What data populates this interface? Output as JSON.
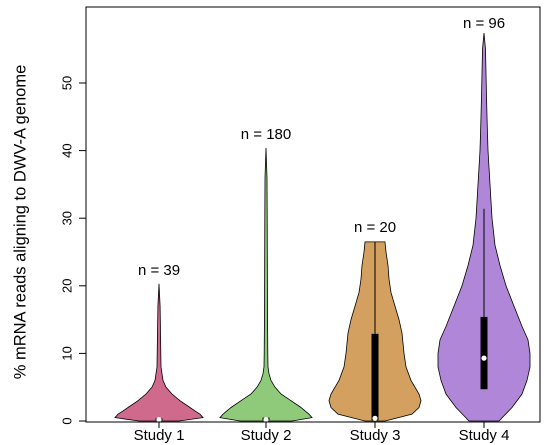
{
  "chart_data": {
    "type": "violin",
    "title": "",
    "ylabel": "% mRNA reads aligning to DWV-A genome",
    "xlabel": "",
    "ylim": [
      0,
      60
    ],
    "yticks": [
      0,
      10,
      20,
      30,
      40,
      50
    ],
    "grid": false,
    "legend": "none",
    "categories": [
      "Study 1",
      "Study 2",
      "Study 3",
      "Study 4"
    ],
    "annotations": [
      "n = 39",
      "n = 180",
      "n = 20",
      "n = 96"
    ],
    "series": [
      {
        "category": "Study 1",
        "n": 39,
        "color": "#d06a8d",
        "max": 20.3,
        "median": 0.2,
        "q1": 0.1,
        "q3": 0.4,
        "density": [
          [
            0,
            20
          ],
          [
            0.5,
            44
          ],
          [
            1,
            41
          ],
          [
            1.5,
            36
          ],
          [
            2,
            31
          ],
          [
            3,
            21
          ],
          [
            4,
            13
          ],
          [
            5,
            7
          ],
          [
            6,
            4
          ],
          [
            7,
            3
          ],
          [
            8,
            2
          ],
          [
            10,
            1.8
          ],
          [
            12,
            1.6
          ],
          [
            14,
            1.4
          ],
          [
            17,
            1.1
          ],
          [
            20.3,
            0
          ]
        ]
      },
      {
        "category": "Study 2",
        "n": 180,
        "color": "#8fc97a",
        "max": 40.4,
        "median": 0.2,
        "q1": 0.1,
        "q3": 0.5,
        "density": [
          [
            0,
            26
          ],
          [
            0.5,
            46
          ],
          [
            1,
            43
          ],
          [
            2,
            35
          ],
          [
            3,
            25
          ],
          [
            4,
            15
          ],
          [
            5,
            9
          ],
          [
            6,
            5
          ],
          [
            7,
            3
          ],
          [
            8,
            2
          ],
          [
            10,
            1.8
          ],
          [
            14,
            1.6
          ],
          [
            20,
            1.4
          ],
          [
            30,
            1.2
          ],
          [
            36,
            1
          ],
          [
            40.4,
            0
          ]
        ]
      },
      {
        "category": "Study 3",
        "n": 20,
        "color": "#d4a05f",
        "max": 26.5,
        "median": 0.4,
        "q1": 0.1,
        "q3": 12.9,
        "whisker_high": 26.5,
        "density": [
          [
            0,
            10
          ],
          [
            1,
            37
          ],
          [
            2,
            44
          ],
          [
            3,
            46
          ],
          [
            4,
            44
          ],
          [
            6,
            36
          ],
          [
            8,
            31
          ],
          [
            10,
            29
          ],
          [
            13,
            27
          ],
          [
            15,
            24
          ],
          [
            17,
            20
          ],
          [
            19,
            16
          ],
          [
            21,
            14
          ],
          [
            23,
            13
          ],
          [
            25,
            11
          ],
          [
            26.5,
            10
          ],
          [
            26.5,
            0
          ]
        ]
      },
      {
        "category": "Study 4",
        "n": 96,
        "color": "#b087d8",
        "max": 57.4,
        "median": 9.3,
        "q1": 4.7,
        "q3": 15.4,
        "whisker_high": 31.4,
        "density": [
          [
            0,
            15
          ],
          [
            2,
            28
          ],
          [
            4,
            38
          ],
          [
            6,
            43
          ],
          [
            8,
            46
          ],
          [
            10,
            46
          ],
          [
            12,
            44
          ],
          [
            14,
            38
          ],
          [
            17,
            30
          ],
          [
            20,
            22
          ],
          [
            23,
            16
          ],
          [
            26,
            11
          ],
          [
            30,
            8
          ],
          [
            35,
            6
          ],
          [
            40,
            4
          ],
          [
            45,
            3
          ],
          [
            50,
            2.2
          ],
          [
            55,
            1.5
          ],
          [
            57.4,
            0
          ]
        ]
      }
    ]
  }
}
